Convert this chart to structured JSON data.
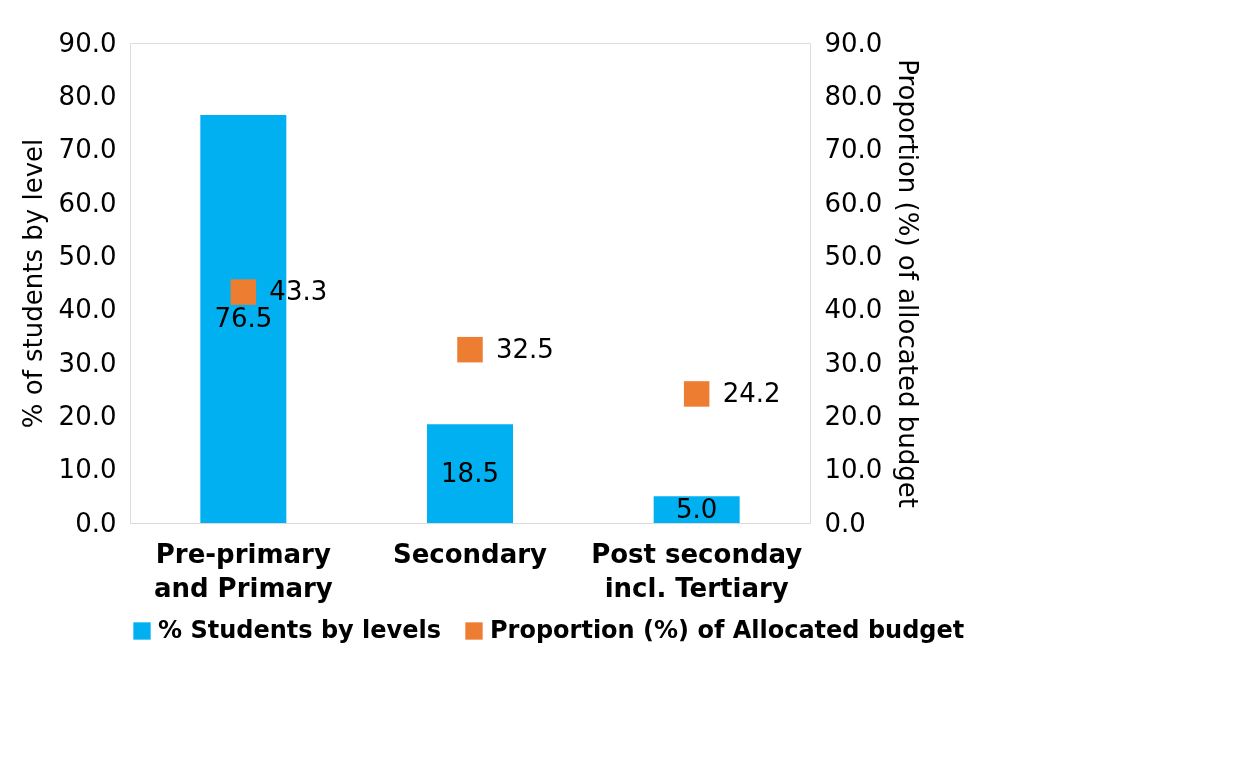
{
  "chart_data": {
    "type": "bar",
    "categories": [
      "Pre-primary and Primary",
      "Secondary",
      "Post seconday incl. Tertiary"
    ],
    "ylabel": "% of students by level",
    "y2label": "Proportion (%) of allocated budget",
    "series": [
      {
        "name": "% Students by levels",
        "color": "#00b0f0",
        "values": [
          76.5,
          18.5,
          5.0
        ],
        "value_labels": [
          "76.5",
          "18.5",
          "5.0"
        ]
      },
      {
        "name": "Proportion (%) of Allocated budget",
        "color": "#ed7d31",
        "values": [
          43.3,
          32.5,
          24.2
        ],
        "value_labels": [
          "43.3",
          "32.5",
          "24.2"
        ],
        "type": "scatter",
        "axis": "y2"
      }
    ],
    "ylim": [
      0,
      90
    ],
    "y2lim": [
      0,
      90
    ],
    "yticks": [
      {
        "value": 0,
        "label": "0.0"
      },
      {
        "value": 10,
        "label": "10.0"
      },
      {
        "value": 20,
        "label": "20.0"
      },
      {
        "value": 30,
        "label": "30.0"
      },
      {
        "value": 40,
        "label": "40.0"
      },
      {
        "value": 50,
        "label": "50.0"
      },
      {
        "value": 60,
        "label": "60.0"
      },
      {
        "value": 70,
        "label": "70.0"
      },
      {
        "value": 80,
        "label": "80.0"
      },
      {
        "value": 90,
        "label": "90.0"
      }
    ],
    "y2ticks": [
      {
        "value": 0,
        "label": "0.0"
      },
      {
        "value": 10,
        "label": "10.0"
      },
      {
        "value": 20,
        "label": "20.0"
      },
      {
        "value": 30,
        "label": "30.0"
      },
      {
        "value": 40,
        "label": "40.0"
      },
      {
        "value": 50,
        "label": "50.0"
      },
      {
        "value": 60,
        "label": "60.0"
      },
      {
        "value": 70,
        "label": "70.0"
      },
      {
        "value": 80,
        "label": "80.0"
      },
      {
        "value": 90,
        "label": "90.0"
      }
    ],
    "grid": false,
    "legend": "bottom",
    "marker": "square"
  }
}
